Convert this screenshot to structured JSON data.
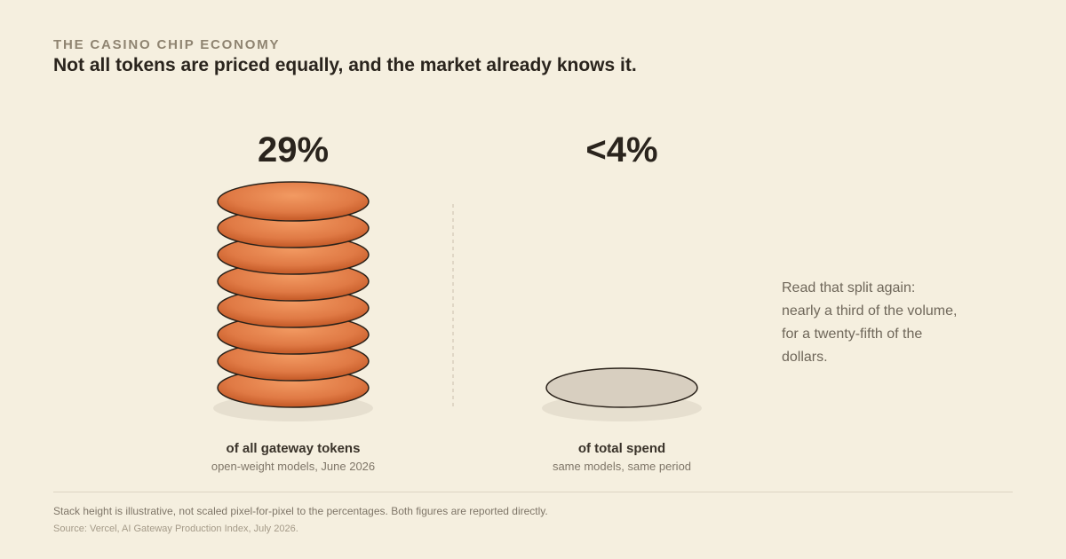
{
  "eyebrow": "THE CASINO CHIP ECONOMY",
  "headline": "Not all tokens are priced equally, and the market already knows it.",
  "chart_data": {
    "type": "bar",
    "title": "",
    "categories": [
      "of all gateway tokens",
      "of total spend"
    ],
    "series": [
      {
        "values": [
          29,
          4
        ]
      }
    ],
    "value_labels": [
      "29%",
      "<4%"
    ],
    "captions": [
      "open-weight models, June 2026",
      "same models, same period"
    ],
    "chip_counts": [
      8,
      1
    ],
    "colors": {
      "tokens_chip": "#e07a45",
      "tokens_chip_light": "#f29a62",
      "tokens_chip_dark": "#c95f2c",
      "spend_chip": "#d8cfc0",
      "outline": "#2a221a",
      "shadow": "#e6dfcf"
    },
    "grid": false
  },
  "aside": "Read that split again:\nnearly a third of the volume,\nfor a twenty-fifth of the\ndollars.",
  "footnote": "Stack height is illustrative, not scaled pixel-for-pixel to the percentages. Both figures are reported directly.",
  "source": "Source: Vercel, AI Gateway Production Index, July 2026."
}
